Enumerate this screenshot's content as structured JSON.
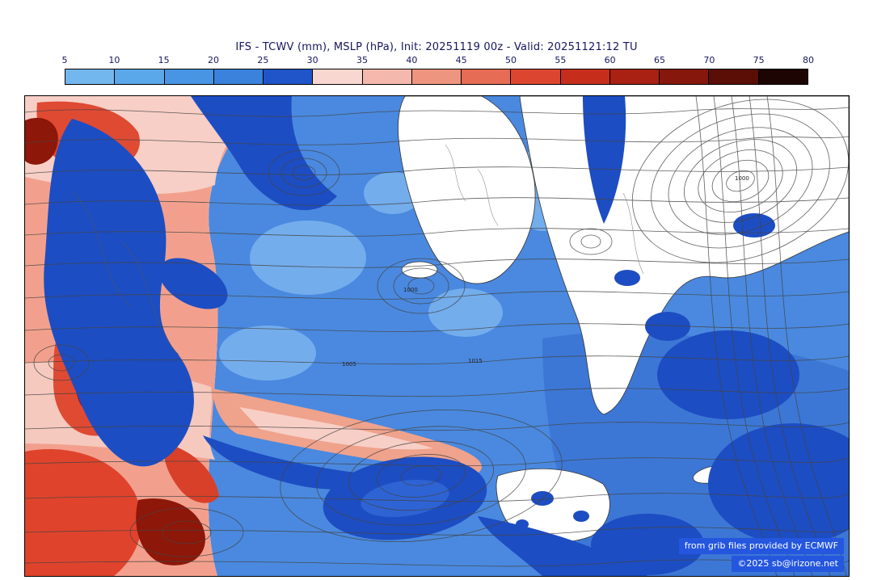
{
  "header": {
    "title": "IFS - TCWV (mm), MSLP (hPa), Init: 20251119 00z - Valid: 20251121:12 TU"
  },
  "colorbar": {
    "units": "mm",
    "ticks": [
      "5",
      "10",
      "15",
      "20",
      "25",
      "30",
      "35",
      "40",
      "45",
      "50",
      "55",
      "60",
      "65",
      "70",
      "75",
      "80"
    ],
    "segment_colors": [
      "#73b7ef",
      "#5aa7e9",
      "#4795e3",
      "#3a82db",
      "#1f55c8",
      "#f7d7cf",
      "#f4b9ac",
      "#ee957f",
      "#e76c55",
      "#dc4630",
      "#c62e1b",
      "#a82113",
      "#86170c",
      "#5a0e06",
      "#1d0503"
    ]
  },
  "map": {
    "contour_labels": [
      {
        "text": "1000"
      },
      {
        "text": "1015"
      },
      {
        "text": "1005"
      },
      {
        "text": "1000"
      }
    ],
    "palette": {
      "ocean_base": "#4a89df",
      "deep_moisture": "#1d4dc2",
      "dry_salmon": "#f2a08d",
      "dry_red": "#df4a33",
      "dry_maroon": "#8d1708",
      "land_white": "#ffffff",
      "isobar_gray": "#444444"
    }
  },
  "attribution": {
    "line1": "from grib files provided by ECMWF",
    "line2": "©2025 sb@irizone.net"
  },
  "chart_data": {
    "type": "heatmap",
    "title": "IFS - TCWV (mm), MSLP (hPa), Init: 20251119 00z - Valid: 20251121:12 TU",
    "variable": "TCWV",
    "units": "mm",
    "overlay": "MSLP (hPa)",
    "init": "20251119 00z",
    "valid": "20251121:12 TU",
    "colorbar_ticks": [
      5,
      10,
      15,
      20,
      25,
      30,
      35,
      40,
      45,
      50,
      55,
      60,
      65,
      70,
      75,
      80
    ]
  }
}
